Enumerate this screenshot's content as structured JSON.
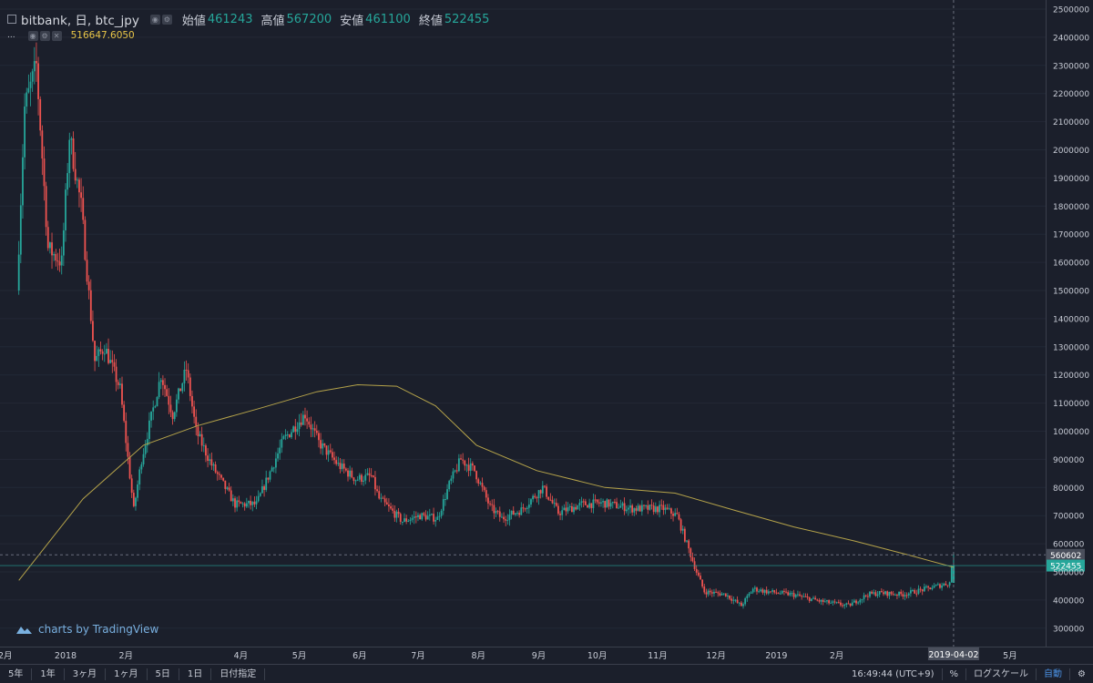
{
  "header": {
    "symbol": "bitbank, 日, btc_jpy",
    "open_label": "始値",
    "open_value": "461243",
    "high_label": "高値",
    "high_value": "567200",
    "low_label": "安値",
    "low_value": "461100",
    "close_label": "終値",
    "close_value": "522455",
    "indicator_dots": "...",
    "ma_value": "516647.6050"
  },
  "watermark": {
    "text": "charts by TradingView"
  },
  "bottom_bar": {
    "periods": [
      "5年",
      "1年",
      "3ヶ月",
      "1ヶ月",
      "5日",
      "1日",
      "日付指定"
    ],
    "clock": "16:49:44 (UTC+9)",
    "percent_label": "%",
    "log_label": "ログスケール",
    "auto_label": "自動"
  },
  "colors": {
    "up": "#26a69a",
    "down": "#ef5350",
    "ma": "#b5a34a",
    "background": "#1b1f2b"
  },
  "icons": {
    "collapse": "square-minus-icon",
    "settings": "gear-icon",
    "logo": "tradingview-cloud-icon"
  },
  "chart_data": {
    "type": "candlestick",
    "title": "bitbank, 日, btc_jpy",
    "ylim": [
      250000,
      2520000
    ],
    "y_ticks": [
      "2500000",
      "2400000",
      "2300000",
      "2200000",
      "2100000",
      "2000000",
      "1900000",
      "1800000",
      "1700000",
      "1600000",
      "1500000",
      "1400000",
      "1300000",
      "1200000",
      "1100000",
      "1000000",
      "900000",
      "800000",
      "700000",
      "600000",
      "500000",
      "400000",
      "300000"
    ],
    "x_ticks": [
      "2月",
      "2018",
      "2月",
      "4月",
      "5月",
      "6月",
      "7月",
      "8月",
      "9月",
      "10月",
      "11月",
      "12月",
      "2019",
      "2月",
      "5月"
    ],
    "crosshair_date": "2019-04-02",
    "price_labels": {
      "crosshair": "560602",
      "last": "522455"
    },
    "last_bar": {
      "open": 461243,
      "high": 567200,
      "low": 461100,
      "close": 522455
    },
    "moving_average": {
      "last": 516647.605
    },
    "price_path": [
      {
        "date": "2017-12-08",
        "price": 1500000
      },
      {
        "date": "2017-12-12",
        "price": 2150000
      },
      {
        "date": "2017-12-18",
        "price": 2300000
      },
      {
        "date": "2017-12-24",
        "price": 1650000
      },
      {
        "date": "2017-12-31",
        "price": 1600000
      },
      {
        "date": "2018-01-04",
        "price": 2050000
      },
      {
        "date": "2018-01-10",
        "price": 1800000
      },
      {
        "date": "2018-01-17",
        "price": 1250000
      },
      {
        "date": "2018-01-22",
        "price": 1300000
      },
      {
        "date": "2018-01-30",
        "price": 1150000
      },
      {
        "date": "2018-02-06",
        "price": 720000
      },
      {
        "date": "2018-02-10",
        "price": 900000
      },
      {
        "date": "2018-02-20",
        "price": 1200000
      },
      {
        "date": "2018-02-26",
        "price": 1060000
      },
      {
        "date": "2018-03-05",
        "price": 1220000
      },
      {
        "date": "2018-03-10",
        "price": 1000000
      },
      {
        "date": "2018-03-18",
        "price": 880000
      },
      {
        "date": "2018-03-30",
        "price": 740000
      },
      {
        "date": "2018-04-10",
        "price": 740000
      },
      {
        "date": "2018-04-24",
        "price": 970000
      },
      {
        "date": "2018-05-05",
        "price": 1060000
      },
      {
        "date": "2018-05-12",
        "price": 960000
      },
      {
        "date": "2018-05-22",
        "price": 880000
      },
      {
        "date": "2018-05-31",
        "price": 830000
      },
      {
        "date": "2018-06-08",
        "price": 840000
      },
      {
        "date": "2018-06-12",
        "price": 760000
      },
      {
        "date": "2018-06-24",
        "price": 680000
      },
      {
        "date": "2018-07-03",
        "price": 700000
      },
      {
        "date": "2018-07-12",
        "price": 690000
      },
      {
        "date": "2018-07-18",
        "price": 810000
      },
      {
        "date": "2018-07-24",
        "price": 900000
      },
      {
        "date": "2018-07-31",
        "price": 860000
      },
      {
        "date": "2018-08-08",
        "price": 730000
      },
      {
        "date": "2018-08-14",
        "price": 690000
      },
      {
        "date": "2018-08-24",
        "price": 720000
      },
      {
        "date": "2018-09-04",
        "price": 800000
      },
      {
        "date": "2018-09-12",
        "price": 710000
      },
      {
        "date": "2018-09-24",
        "price": 740000
      },
      {
        "date": "2018-10-05",
        "price": 745000
      },
      {
        "date": "2018-10-20",
        "price": 725000
      },
      {
        "date": "2018-11-05",
        "price": 725000
      },
      {
        "date": "2018-11-12",
        "price": 700000
      },
      {
        "date": "2018-11-16",
        "price": 620000
      },
      {
        "date": "2018-11-22",
        "price": 500000
      },
      {
        "date": "2018-11-26",
        "price": 430000
      },
      {
        "date": "2018-12-07",
        "price": 420000
      },
      {
        "date": "2018-12-15",
        "price": 380000
      },
      {
        "date": "2018-12-21",
        "price": 440000
      },
      {
        "date": "2018-12-28",
        "price": 430000
      },
      {
        "date": "2019-01-10",
        "price": 420000
      },
      {
        "date": "2019-01-25",
        "price": 395000
      },
      {
        "date": "2019-02-08",
        "price": 380000
      },
      {
        "date": "2019-02-18",
        "price": 420000
      },
      {
        "date": "2019-02-24",
        "price": 425000
      },
      {
        "date": "2019-03-08",
        "price": 420000
      },
      {
        "date": "2019-03-20",
        "price": 440000
      },
      {
        "date": "2019-04-01",
        "price": 461243
      },
      {
        "date": "2019-04-02",
        "price": 522455
      }
    ],
    "ma_path": [
      {
        "date": "2017-12-08",
        "price": 470000
      },
      {
        "date": "2018-01-10",
        "price": 760000
      },
      {
        "date": "2018-02-10",
        "price": 950000
      },
      {
        "date": "2018-03-10",
        "price": 1020000
      },
      {
        "date": "2018-04-10",
        "price": 1080000
      },
      {
        "date": "2018-05-10",
        "price": 1140000
      },
      {
        "date": "2018-05-31",
        "price": 1165000
      },
      {
        "date": "2018-06-20",
        "price": 1160000
      },
      {
        "date": "2018-07-10",
        "price": 1090000
      },
      {
        "date": "2018-07-31",
        "price": 950000
      },
      {
        "date": "2018-08-31",
        "price": 860000
      },
      {
        "date": "2018-10-05",
        "price": 800000
      },
      {
        "date": "2018-11-10",
        "price": 780000
      },
      {
        "date": "2018-12-10",
        "price": 720000
      },
      {
        "date": "2019-01-10",
        "price": 660000
      },
      {
        "date": "2019-02-10",
        "price": 610000
      },
      {
        "date": "2019-03-10",
        "price": 560000
      },
      {
        "date": "2019-04-02",
        "price": 516647.605
      }
    ]
  }
}
